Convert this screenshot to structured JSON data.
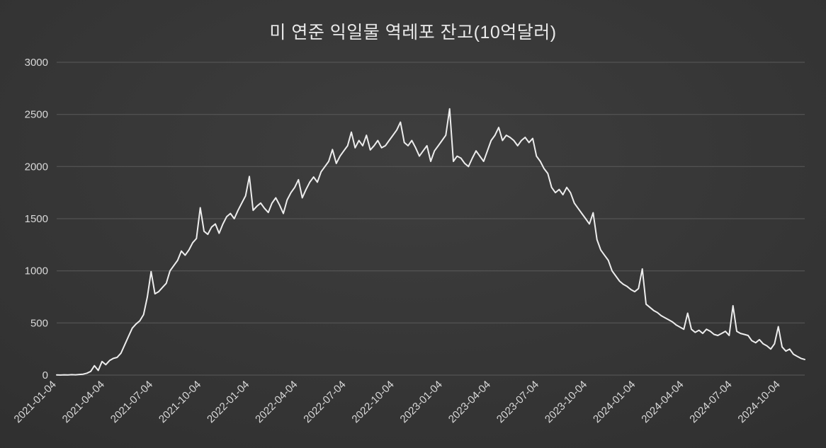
{
  "chart_data": {
    "type": "line",
    "title": "미 연준 익일물 역레포 잔고(10억달러)",
    "xlabel": "",
    "ylabel": "",
    "ylim": [
      0,
      3000
    ],
    "y_ticks": [
      0,
      500,
      1000,
      1500,
      2000,
      2500,
      3000
    ],
    "x_ticks": [
      "2021-01-04",
      "2021-04-04",
      "2021-07-04",
      "2021-10-04",
      "2022-01-04",
      "2022-04-04",
      "2022-07-04",
      "2022-10-04",
      "2023-01-04",
      "2023-04-04",
      "2023-07-04",
      "2023-10-04",
      "2024-01-04",
      "2024-04-04",
      "2024-07-04",
      "2024-10-04"
    ],
    "x_tick_interval_months": 3,
    "x_span_months": 46.5,
    "grid": true,
    "legend_position": "none",
    "values": [
      2,
      1,
      3,
      2,
      4,
      3,
      6,
      9,
      18,
      35,
      90,
      45,
      130,
      100,
      140,
      160,
      170,
      210,
      290,
      370,
      450,
      490,
      520,
      580,
      750,
      992,
      780,
      800,
      840,
      880,
      1000,
      1050,
      1100,
      1190,
      1150,
      1200,
      1270,
      1310,
      1605,
      1380,
      1350,
      1420,
      1450,
      1360,
      1450,
      1520,
      1550,
      1500,
      1580,
      1650,
      1720,
      1905,
      1580,
      1620,
      1650,
      1600,
      1560,
      1650,
      1700,
      1630,
      1550,
      1680,
      1750,
      1800,
      1874,
      1700,
      1780,
      1850,
      1900,
      1850,
      1950,
      2000,
      2050,
      2163,
      2030,
      2100,
      2150,
      2200,
      2330,
      2180,
      2250,
      2200,
      2300,
      2160,
      2200,
      2250,
      2180,
      2200,
      2250,
      2300,
      2350,
      2426,
      2230,
      2200,
      2250,
      2180,
      2100,
      2150,
      2200,
      2050,
      2150,
      2200,
      2250,
      2300,
      2554,
      2050,
      2100,
      2080,
      2030,
      2000,
      2080,
      2150,
      2100,
      2050,
      2150,
      2250,
      2300,
      2375,
      2250,
      2300,
      2280,
      2250,
      2200,
      2250,
      2280,
      2230,
      2270,
      2100,
      2050,
      1980,
      1934,
      1800,
      1750,
      1780,
      1730,
      1800,
      1750,
      1650,
      1600,
      1550,
      1500,
      1450,
      1557,
      1300,
      1200,
      1150,
      1100,
      1000,
      950,
      900,
      870,
      850,
      820,
      800,
      830,
      1018,
      680,
      650,
      620,
      600,
      570,
      550,
      530,
      510,
      480,
      460,
      440,
      594,
      440,
      410,
      430,
      400,
      440,
      420,
      390,
      380,
      400,
      420,
      380,
      665,
      420,
      400,
      390,
      380,
      330,
      310,
      340,
      300,
      280,
      250,
      300,
      465,
      270,
      230,
      250,
      200,
      180,
      160,
      150
    ],
    "colors": {
      "line": "#ededed",
      "grid": "#5a5a5a",
      "text": "#d9d9d9",
      "background_center": "#3e3e3e",
      "background_edge": "#262626"
    }
  }
}
